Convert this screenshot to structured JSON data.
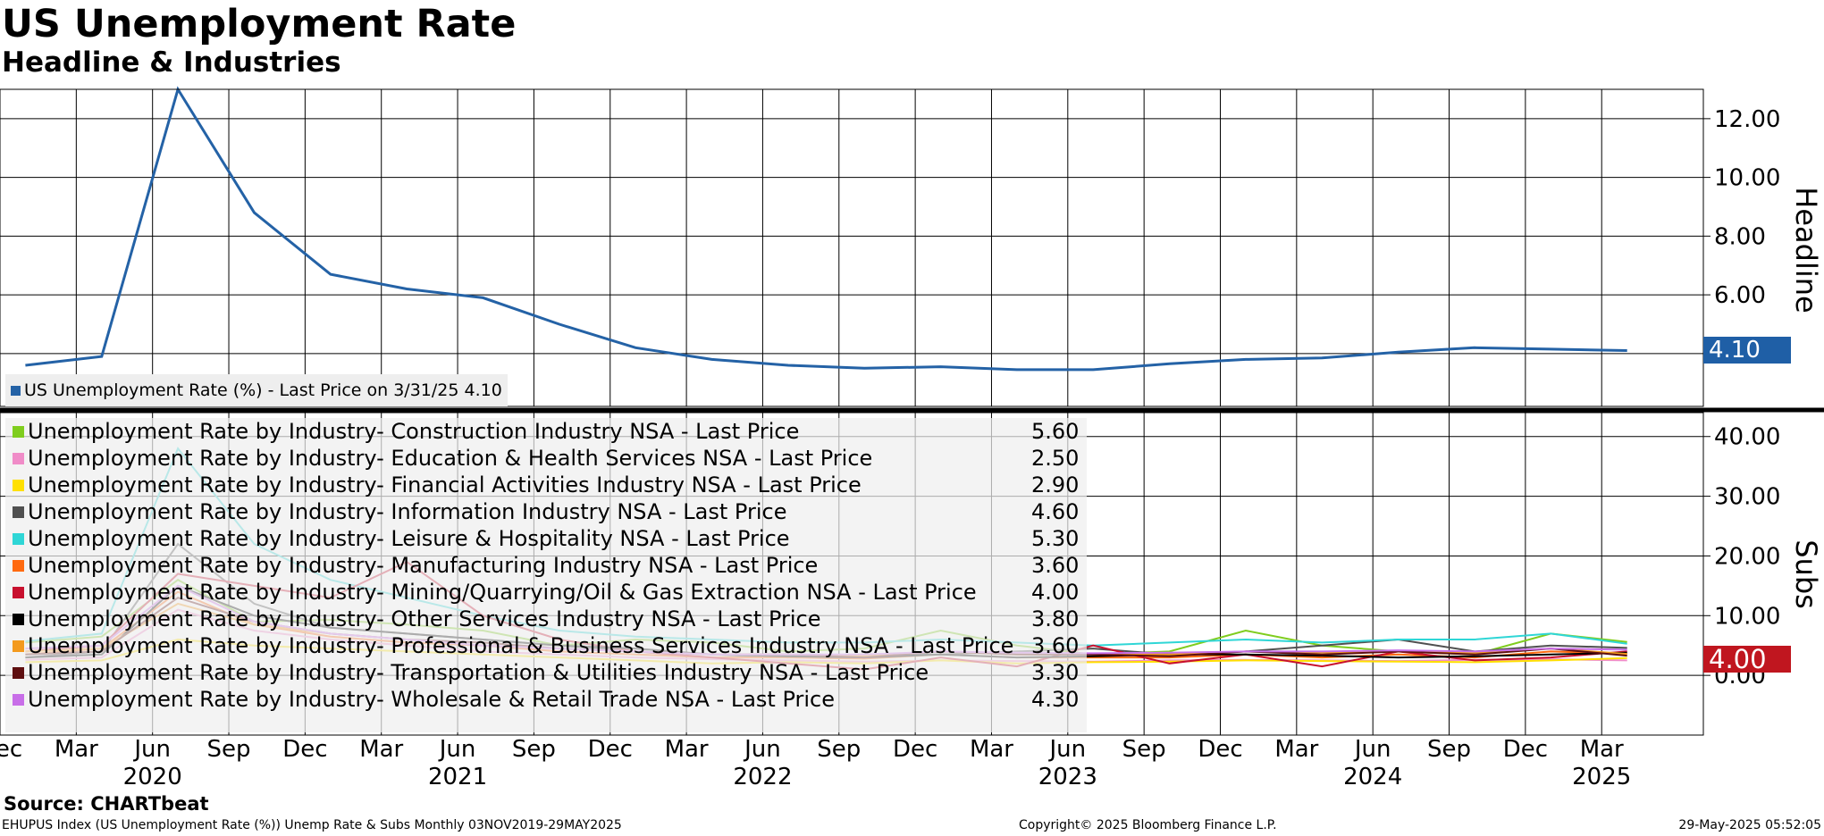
{
  "title": "US Unemployment Rate",
  "subtitle": "Headline & Industries",
  "source": "Source: CHARTbeat",
  "footer": {
    "left": "EHUPUS Index (US Unemployment Rate (%)) Unemp Rate & Subs  Monthly 03NOV2019-29MAY2025",
    "center": "Copyright© 2025 Bloomberg Finance L.P.",
    "right": "29-May-2025 05:52:05"
  },
  "colors": {
    "headline": "#2462a6",
    "grid": "#000000",
    "tag_headline": "#1f5fa6",
    "tag_subs": "#c0161f"
  },
  "chart_data": [
    {
      "type": "line",
      "panel": "Headline",
      "ylabel": "Headline",
      "ylim": [
        2.2,
        13.0
      ],
      "yticks": [
        "12.00",
        "10.00",
        "8.00",
        "6.00"
      ],
      "ytick_values": [
        12,
        10,
        8,
        6
      ],
      "x_range": [
        2019.9167,
        2025.5
      ],
      "series": [
        {
          "name": "US Unemployment Rate (%)",
          "legend": "US Unemployment Rate (%) - Last Price on 3/31/25 4.10",
          "color": "#2462a6",
          "last_value": "4.10",
          "x": [
            2020.0,
            2020.25,
            2020.5,
            2020.75,
            2021.0,
            2021.25,
            2021.5,
            2021.75,
            2022.0,
            2022.25,
            2022.5,
            2022.75,
            2023.0,
            2023.25,
            2023.5,
            2023.75,
            2024.0,
            2024.25,
            2024.5,
            2024.75,
            2025.0,
            2025.25
          ],
          "values": [
            3.6,
            3.9,
            13.0,
            8.8,
            6.7,
            6.2,
            5.9,
            5.0,
            4.2,
            3.8,
            3.6,
            3.5,
            3.55,
            3.45,
            3.45,
            3.65,
            3.8,
            3.85,
            4.05,
            4.2,
            4.15,
            4.1
          ]
        }
      ]
    },
    {
      "type": "line",
      "panel": "Subs",
      "ylabel": "Subs",
      "ylim": [
        -10.0,
        44.0
      ],
      "yticks": [
        "40.00",
        "30.00",
        "20.00",
        "10.00",
        "0.00"
      ],
      "ytick_values": [
        40,
        30,
        20,
        10,
        0
      ],
      "last_value_tag": "4.00",
      "x_range": [
        2019.9167,
        2025.5
      ],
      "x": [
        2020.0,
        2020.25,
        2020.5,
        2020.75,
        2021.0,
        2021.25,
        2021.5,
        2021.75,
        2022.0,
        2022.25,
        2022.5,
        2022.75,
        2023.0,
        2023.25,
        2023.5,
        2023.75,
        2024.0,
        2024.25,
        2024.5,
        2024.75,
        2025.0,
        2025.25
      ],
      "series": [
        {
          "name": "Unemployment Rate by Industry- Construction Industry NSA - Last Price",
          "value": "5.60",
          "color": "#7fcd1e",
          "values": [
            5.5,
            6.5,
            16.0,
            9.0,
            9.3,
            8.5,
            7.5,
            5.0,
            6.0,
            5.5,
            4.0,
            4.5,
            7.5,
            5.0,
            3.5,
            4.0,
            7.5,
            5.0,
            4.0,
            3.5,
            7.0,
            5.6
          ]
        },
        {
          "name": "Unemployment Rate by Industry- Education & Health Services NSA - Last Price",
          "value": "2.50",
          "color": "#f08cc8",
          "values": [
            2.6,
            3.0,
            11.0,
            7.5,
            6.0,
            5.0,
            4.0,
            3.5,
            3.0,
            2.7,
            2.5,
            2.3,
            2.5,
            2.4,
            2.3,
            2.5,
            2.6,
            2.5,
            2.4,
            2.6,
            2.7,
            2.5
          ]
        },
        {
          "name": "Unemployment Rate by Industry- Financial Activities Industry NSA - Last Price",
          "value": "2.90",
          "color": "#ffe000",
          "values": [
            2.2,
            2.5,
            6.0,
            5.0,
            4.5,
            4.0,
            3.5,
            3.0,
            2.5,
            2.0,
            2.2,
            2.0,
            2.5,
            2.0,
            2.2,
            2.3,
            2.5,
            2.4,
            2.3,
            2.2,
            2.5,
            2.9
          ]
        },
        {
          "name": "Unemployment Rate by Industry- Information Industry NSA - Last Price",
          "value": "4.60",
          "color": "#505050",
          "values": [
            3.0,
            4.0,
            22.0,
            12.0,
            8.0,
            7.0,
            6.0,
            5.0,
            4.0,
            3.5,
            3.0,
            3.5,
            3.5,
            4.0,
            4.5,
            3.5,
            4.0,
            5.0,
            6.0,
            4.0,
            5.0,
            4.6
          ]
        },
        {
          "name": "Unemployment Rate by Industry- Leisure & Hospitality NSA - Last Price",
          "value": "5.30",
          "color": "#2fd6d6",
          "values": [
            5.7,
            7.0,
            38.0,
            22.0,
            16.0,
            13.0,
            10.0,
            7.5,
            6.5,
            6.0,
            5.5,
            5.5,
            6.0,
            5.5,
            5.0,
            5.5,
            6.0,
            5.5,
            6.0,
            6.0,
            7.0,
            5.3
          ]
        },
        {
          "name": "Unemployment Rate by Industry- Manufacturing Industry NSA - Last Price",
          "value": "3.60",
          "color": "#ff6a10",
          "values": [
            3.5,
            4.5,
            14.0,
            8.5,
            6.5,
            5.5,
            5.0,
            4.0,
            3.5,
            3.0,
            3.0,
            2.8,
            3.5,
            3.0,
            3.0,
            3.0,
            3.5,
            3.0,
            3.5,
            3.0,
            4.0,
            3.6
          ]
        },
        {
          "name": "Unemployment Rate by Industry- Mining/Quarrying/Oil & Gas Extraction NSA - Last Price",
          "value": "4.00",
          "color": "#c8102e",
          "values": [
            4.0,
            5.0,
            17.0,
            15.0,
            13.0,
            19.0,
            10.0,
            6.0,
            4.0,
            3.0,
            2.0,
            1.0,
            3.0,
            1.5,
            5.0,
            2.0,
            3.5,
            1.5,
            4.0,
            2.5,
            3.0,
            4.0
          ]
        },
        {
          "name": "Unemployment Rate by Industry- Other Services Industry NSA - Last Price",
          "value": "3.80",
          "color": "#000000",
          "values": [
            3.0,
            3.5,
            15.0,
            10.0,
            8.0,
            7.0,
            6.0,
            5.0,
            4.5,
            3.5,
            3.2,
            3.0,
            3.5,
            3.0,
            3.2,
            3.5,
            3.5,
            3.3,
            3.0,
            3.2,
            3.5,
            3.8
          ]
        },
        {
          "name": "Unemployment Rate by Industry- Professional & Business Services Industry NSA - Last Price",
          "value": "3.60",
          "color": "#f39a1e",
          "values": [
            4.0,
            4.5,
            12.0,
            8.5,
            7.0,
            6.0,
            5.0,
            4.5,
            4.0,
            3.5,
            3.5,
            3.3,
            4.0,
            3.5,
            3.6,
            3.5,
            4.0,
            3.8,
            4.0,
            3.7,
            4.5,
            3.6
          ]
        },
        {
          "name": "Unemployment Rate by Industry- Transportation & Utilities Industry NSA - Last Price",
          "value": "3.30",
          "color": "#5e0f10",
          "values": [
            3.5,
            4.0,
            13.0,
            9.0,
            7.0,
            6.0,
            5.5,
            4.5,
            4.0,
            3.5,
            3.5,
            3.0,
            4.0,
            3.5,
            3.5,
            3.2,
            4.0,
            3.5,
            4.0,
            3.5,
            4.5,
            3.3
          ]
        },
        {
          "name": "Unemployment Rate by Industry- Wholesale & Retail Trade NSA - Last Price",
          "value": "4.30",
          "color": "#c86ee8",
          "values": [
            4.5,
            5.0,
            15.0,
            9.0,
            7.0,
            6.0,
            5.0,
            4.5,
            4.0,
            3.5,
            3.5,
            3.5,
            4.0,
            3.8,
            3.7,
            3.8,
            4.0,
            4.0,
            4.2,
            4.0,
            4.5,
            4.3
          ]
        }
      ]
    }
  ],
  "x_axis": {
    "month_ticks": [
      {
        "label": "Dec",
        "x": 2019.9167
      },
      {
        "label": "Mar",
        "x": 2020.1667
      },
      {
        "label": "Jun",
        "x": 2020.4167
      },
      {
        "label": "Sep",
        "x": 2020.6667
      },
      {
        "label": "Dec",
        "x": 2020.9167
      },
      {
        "label": "Mar",
        "x": 2021.1667
      },
      {
        "label": "Jun",
        "x": 2021.4167
      },
      {
        "label": "Sep",
        "x": 2021.6667
      },
      {
        "label": "Dec",
        "x": 2021.9167
      },
      {
        "label": "Mar",
        "x": 2022.1667
      },
      {
        "label": "Jun",
        "x": 2022.4167
      },
      {
        "label": "Sep",
        "x": 2022.6667
      },
      {
        "label": "Dec",
        "x": 2022.9167
      },
      {
        "label": "Mar",
        "x": 2023.1667
      },
      {
        "label": "Jun",
        "x": 2023.4167
      },
      {
        "label": "Sep",
        "x": 2023.6667
      },
      {
        "label": "Dec",
        "x": 2023.9167
      },
      {
        "label": "Mar",
        "x": 2024.1667
      },
      {
        "label": "Jun",
        "x": 2024.4167
      },
      {
        "label": "Sep",
        "x": 2024.6667
      },
      {
        "label": "Dec",
        "x": 2024.9167
      },
      {
        "label": "Mar",
        "x": 2025.1667
      }
    ],
    "year_labels": [
      {
        "label": "2020",
        "x": 2020.4167
      },
      {
        "label": "2021",
        "x": 2021.4167
      },
      {
        "label": "2022",
        "x": 2022.4167
      },
      {
        "label": "2023",
        "x": 2023.4167
      },
      {
        "label": "2024",
        "x": 2024.4167
      },
      {
        "label": "2025",
        "x": 2025.1667
      }
    ]
  }
}
